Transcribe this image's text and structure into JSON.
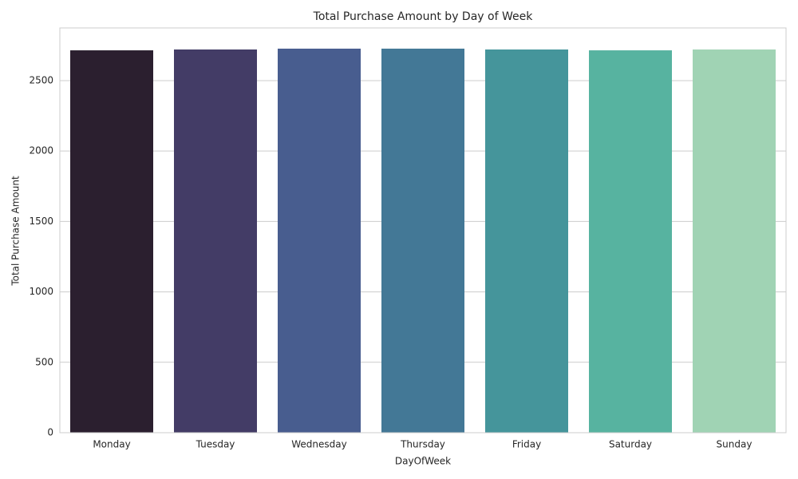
{
  "chart_data": {
    "type": "bar",
    "title": "Total Purchase Amount by Day of Week",
    "x_label": "DayOfWeek",
    "y_label": "Total Purchase Amount",
    "categories": [
      "Monday",
      "Tuesday",
      "Wednesday",
      "Thursday",
      "Friday",
      "Saturday",
      "Sunday"
    ],
    "values": [
      2715,
      2721,
      2727,
      2727,
      2721,
      2715,
      2721
    ],
    "colors": [
      "#2b1f2f",
      "#433c66",
      "#485d8f",
      "#437896",
      "#45959b",
      "#57b3a0",
      "#a0d3b4"
    ],
    "ylim": [
      0,
      2874
    ],
    "yticks": [
      0,
      500,
      1000,
      1500,
      2000,
      2500
    ],
    "grid": true
  }
}
